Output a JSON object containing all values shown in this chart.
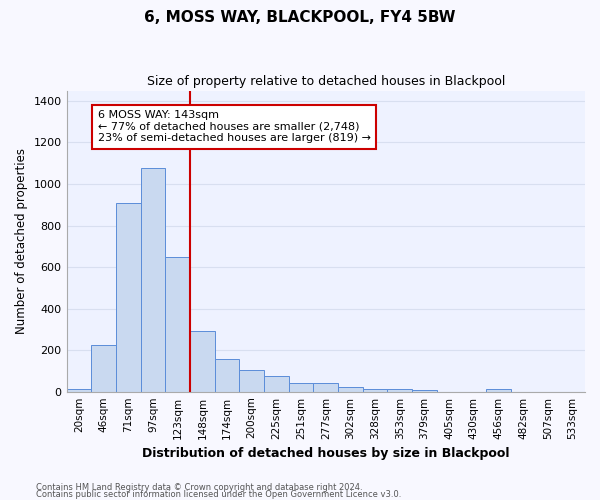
{
  "title1": "6, MOSS WAY, BLACKPOOL, FY4 5BW",
  "title2": "Size of property relative to detached houses in Blackpool",
  "xlabel": "Distribution of detached houses by size in Blackpool",
  "ylabel": "Number of detached properties",
  "categories": [
    "20sqm",
    "46sqm",
    "71sqm",
    "97sqm",
    "123sqm",
    "148sqm",
    "174sqm",
    "200sqm",
    "225sqm",
    "251sqm",
    "277sqm",
    "302sqm",
    "328sqm",
    "353sqm",
    "379sqm",
    "405sqm",
    "430sqm",
    "456sqm",
    "482sqm",
    "507sqm",
    "533sqm"
  ],
  "values": [
    15,
    225,
    910,
    1075,
    650,
    290,
    158,
    105,
    75,
    42,
    42,
    22,
    12,
    15,
    8,
    0,
    0,
    14,
    0,
    0,
    0
  ],
  "bar_color": "#c9d9f0",
  "bar_edge_color": "#5b8dd9",
  "vline_color": "#cc0000",
  "annotation_text1": "6 MOSS WAY: 143sqm",
  "annotation_text2": "← 77% of detached houses are smaller (2,748)",
  "annotation_text3": "23% of semi-detached houses are larger (819) →",
  "annotation_box_color": "#ffffff",
  "annotation_box_edge": "#cc0000",
  "ylim": [
    0,
    1450
  ],
  "yticks": [
    0,
    200,
    400,
    600,
    800,
    1000,
    1200,
    1400
  ],
  "bg_color": "#eef2ff",
  "grid_color": "#d8dff0",
  "fig_bg": "#f8f8ff",
  "footer1": "Contains HM Land Registry data © Crown copyright and database right 2024.",
  "footer2": "Contains public sector information licensed under the Open Government Licence v3.0."
}
